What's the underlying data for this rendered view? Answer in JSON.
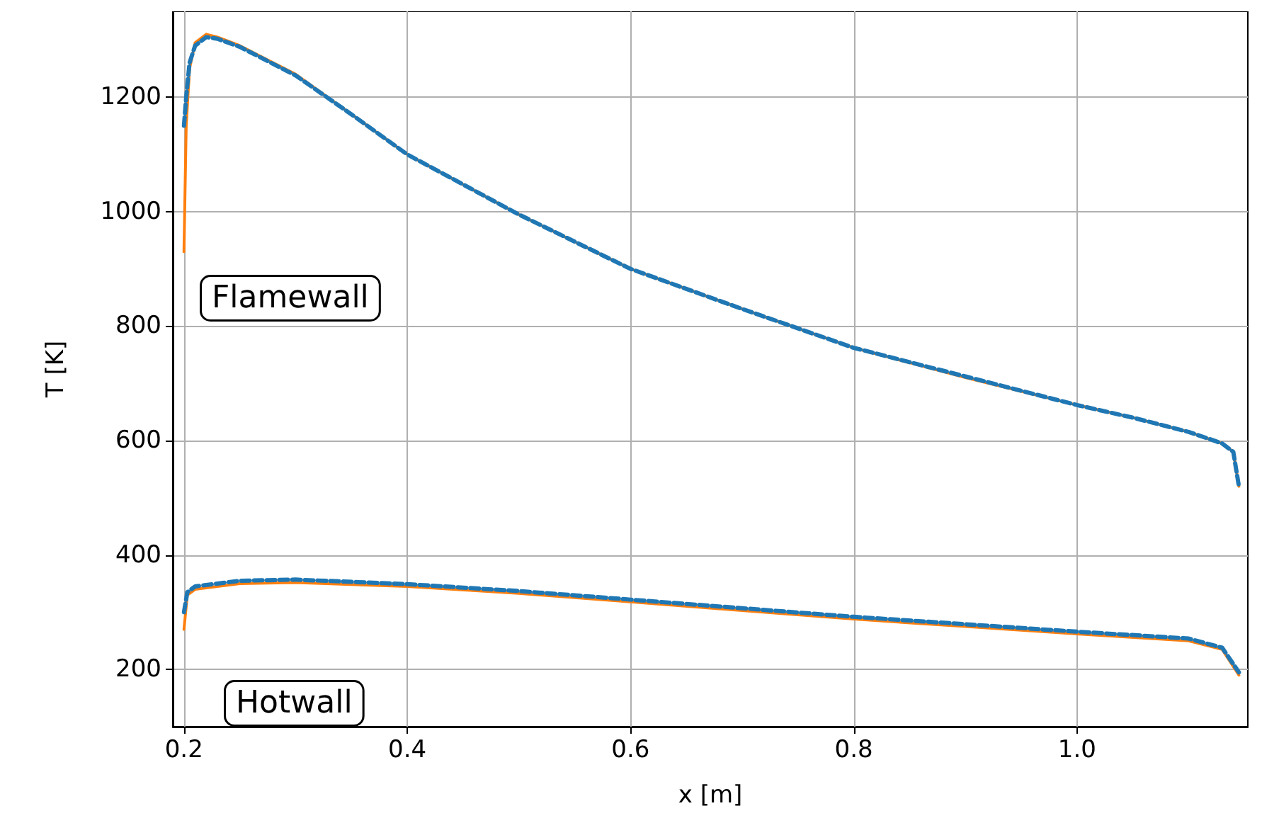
{
  "chart_data": {
    "type": "line",
    "xlabel": "x [m]",
    "ylabel": "T [K]",
    "annotations": [
      "Flamewall",
      "Hotwall"
    ],
    "xlim": [
      0.19,
      1.153
    ],
    "ylim": [
      100,
      1350
    ],
    "xticks": [
      {
        "value": 0.2,
        "label": "0.2"
      },
      {
        "value": 0.4,
        "label": "0.4"
      },
      {
        "value": 0.6,
        "label": "0.6"
      },
      {
        "value": 0.8,
        "label": "0.8"
      },
      {
        "value": 1.0,
        "label": "1.0"
      }
    ],
    "yticks": [
      200,
      400,
      600,
      800,
      1000,
      1200
    ],
    "grid": true,
    "marker": "none",
    "series": [
      {
        "color": "#ff7f0e",
        "line_style": "solid",
        "x": [
          0.2,
          0.202,
          0.205,
          0.21,
          0.22,
          0.23,
          0.25,
          0.3,
          0.35,
          0.4,
          0.5,
          0.6,
          0.7,
          0.8,
          0.9,
          1.0,
          1.05,
          1.1,
          1.13,
          1.14,
          1.145
        ],
        "values": [
          930,
          1150,
          1250,
          1295,
          1310,
          1305,
          1290,
          1240,
          1170,
          1100,
          995,
          900,
          830,
          762,
          710,
          662,
          640,
          615,
          595,
          580,
          520
        ]
      },
      {
        "color": "#1f77b4",
        "line_style": "dashed",
        "x": [
          0.2,
          0.202,
          0.205,
          0.21,
          0.22,
          0.23,
          0.25,
          0.3,
          0.35,
          0.4,
          0.5,
          0.6,
          0.7,
          0.8,
          0.9,
          1.0,
          1.05,
          1.1,
          1.13,
          1.14,
          1.145
        ],
        "values": [
          1150,
          1200,
          1260,
          1290,
          1305,
          1302,
          1288,
          1238,
          1170,
          1100,
          995,
          900,
          830,
          762,
          712,
          662,
          640,
          615,
          595,
          580,
          520
        ]
      },
      {
        "color": "#ff7f0e",
        "line_style": "solid",
        "x": [
          0.2,
          0.203,
          0.21,
          0.25,
          0.3,
          0.4,
          0.5,
          0.6,
          0.7,
          0.8,
          0.9,
          1.0,
          1.1,
          1.13,
          1.145
        ],
        "values": [
          270,
          330,
          340,
          350,
          352,
          345,
          333,
          318,
          303,
          288,
          275,
          262,
          250,
          235,
          190
        ]
      },
      {
        "color": "#1f77b4",
        "line_style": "dashed",
        "x": [
          0.2,
          0.203,
          0.21,
          0.25,
          0.3,
          0.4,
          0.5,
          0.6,
          0.7,
          0.8,
          0.9,
          1.0,
          1.1,
          1.13,
          1.145
        ],
        "values": [
          300,
          335,
          345,
          355,
          357,
          349,
          337,
          322,
          307,
          292,
          279,
          266,
          254,
          238,
          195
        ]
      }
    ]
  }
}
